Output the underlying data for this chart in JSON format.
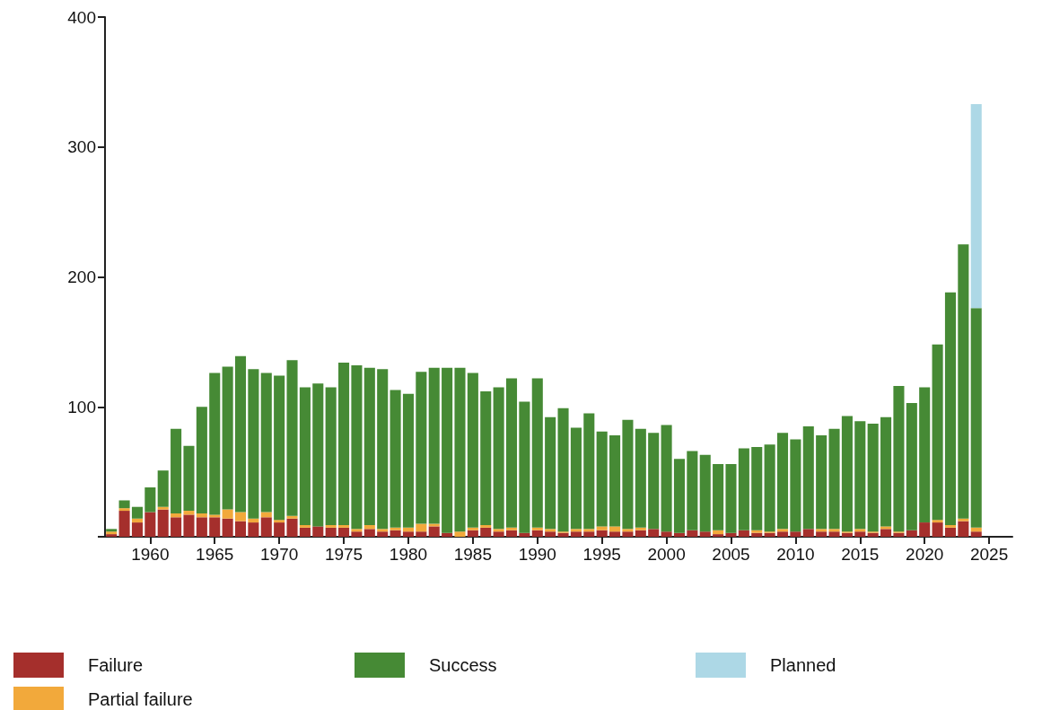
{
  "chart_data": {
    "type": "bar",
    "stacked": true,
    "x": [
      1957,
      1958,
      1959,
      1960,
      1961,
      1962,
      1963,
      1964,
      1965,
      1966,
      1967,
      1968,
      1969,
      1970,
      1971,
      1972,
      1973,
      1974,
      1975,
      1976,
      1977,
      1978,
      1979,
      1980,
      1981,
      1982,
      1983,
      1984,
      1985,
      1986,
      1987,
      1988,
      1989,
      1990,
      1991,
      1992,
      1993,
      1994,
      1995,
      1996,
      1997,
      1998,
      1999,
      2000,
      2001,
      2002,
      2003,
      2004,
      2005,
      2006,
      2007,
      2008,
      2009,
      2010,
      2011,
      2012,
      2013,
      2014,
      2015,
      2016,
      2017,
      2018,
      2019,
      2020,
      2021,
      2022,
      2023,
      2024
    ],
    "series": [
      {
        "name": "Failure",
        "color": "#a52f2c",
        "values": [
          2,
          20,
          11,
          19,
          21,
          15,
          17,
          15,
          15,
          14,
          12,
          11,
          15,
          11,
          14,
          7,
          8,
          7,
          7,
          4,
          6,
          4,
          5,
          4,
          4,
          8,
          3,
          0,
          5,
          7,
          4,
          5,
          3,
          5,
          4,
          3,
          4,
          4,
          5,
          4,
          4,
          5,
          6,
          4,
          3,
          5,
          4,
          2,
          3,
          5,
          3,
          3,
          4,
          4,
          6,
          4,
          4,
          3,
          4,
          3,
          6,
          3,
          5,
          11,
          11,
          7,
          12,
          4
        ]
      },
      {
        "name": "Partial failure",
        "color": "#f2a93b",
        "values": [
          2,
          2,
          3,
          0,
          2,
          3,
          3,
          3,
          2,
          7,
          7,
          3,
          4,
          2,
          2,
          2,
          0,
          2,
          2,
          2,
          3,
          2,
          2,
          3,
          6,
          2,
          0,
          4,
          2,
          2,
          2,
          2,
          0,
          2,
          2,
          1,
          2,
          2,
          3,
          4,
          2,
          2,
          0,
          0,
          0,
          0,
          0,
          3,
          0,
          0,
          2,
          1,
          2,
          0,
          0,
          2,
          2,
          1,
          2,
          1,
          2,
          1,
          0,
          0,
          2,
          2,
          2,
          3
        ]
      },
      {
        "name": "Success",
        "color": "#468a35",
        "values": [
          2,
          6,
          9,
          19,
          28,
          65,
          50,
          82,
          109,
          110,
          120,
          115,
          107,
          111,
          120,
          106,
          110,
          106,
          125,
          126,
          121,
          123,
          106,
          103,
          117,
          120,
          127,
          126,
          119,
          103,
          109,
          115,
          101,
          115,
          86,
          95,
          78,
          89,
          73,
          70,
          84,
          76,
          74,
          82,
          57,
          61,
          59,
          51,
          53,
          63,
          64,
          67,
          74,
          71,
          79,
          72,
          77,
          89,
          83,
          83,
          84,
          112,
          98,
          104,
          135,
          179,
          211,
          169
        ]
      },
      {
        "name": "Planned",
        "color": "#add8e6",
        "values": [
          null,
          null,
          null,
          null,
          null,
          null,
          null,
          null,
          null,
          null,
          null,
          null,
          null,
          null,
          null,
          null,
          null,
          null,
          null,
          null,
          null,
          null,
          null,
          null,
          null,
          null,
          null,
          null,
          null,
          null,
          null,
          null,
          null,
          null,
          null,
          null,
          null,
          null,
          null,
          null,
          null,
          null,
          null,
          null,
          null,
          null,
          null,
          null,
          null,
          null,
          null,
          null,
          null,
          null,
          null,
          null,
          null,
          null,
          null,
          null,
          null,
          null,
          null,
          null,
          null,
          null,
          null,
          157
        ]
      }
    ],
    "xlim": [
      1956.5,
      2026.8
    ],
    "xticks": [
      1960,
      1965,
      1970,
      1975,
      1980,
      1985,
      1990,
      1995,
      2000,
      2005,
      2010,
      2015,
      2020,
      2025
    ],
    "ylim": [
      0,
      400
    ],
    "yticks": [
      {
        "value": 0,
        "label": null
      },
      100,
      200,
      300,
      400
    ],
    "grid": false,
    "legend": "bottom"
  }
}
